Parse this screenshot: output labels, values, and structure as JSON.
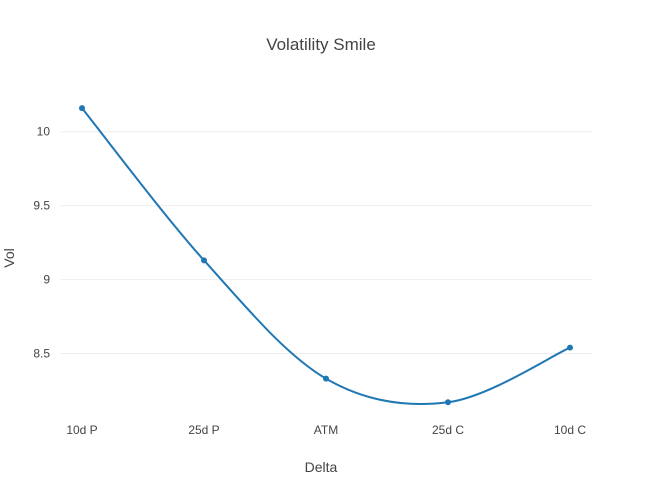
{
  "chart_data": {
    "type": "line",
    "title": "Volatility Smile",
    "xlabel": "Delta",
    "ylabel": "Vol",
    "categories": [
      "10d P",
      "25d P",
      "ATM",
      "25d C",
      "10d C"
    ],
    "series": [
      {
        "values": [
          10.16,
          9.13,
          8.33,
          8.17,
          8.54
        ],
        "color": "#1f77b4"
      }
    ],
    "y_ticks": [
      8.5,
      9,
      9.5,
      10
    ],
    "y_tick_labels": [
      "8.5",
      "9",
      "9.5",
      "10"
    ],
    "ylim": [
      8.05,
      10.35
    ],
    "grid": true,
    "line_shape": "spline",
    "markers": true
  }
}
